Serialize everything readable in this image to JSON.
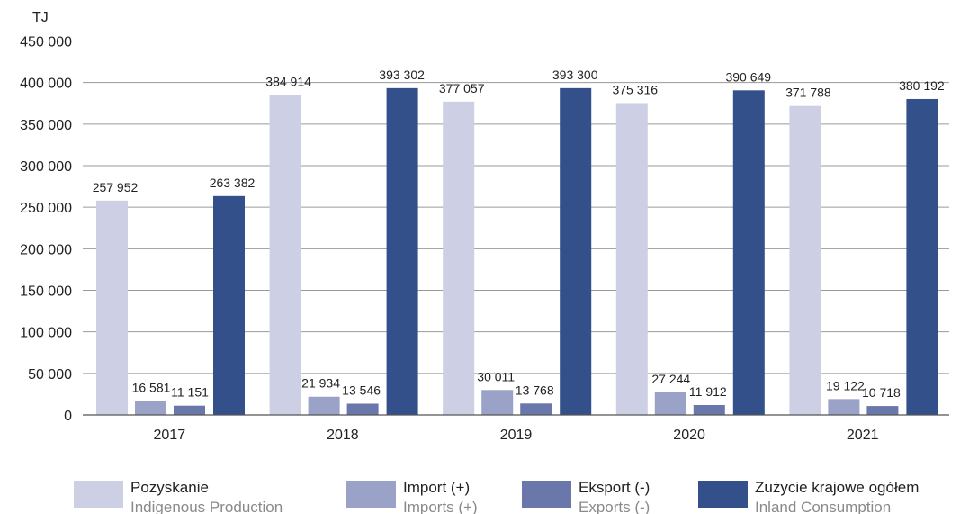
{
  "chart_data": {
    "type": "bar",
    "unit_label": "TJ",
    "categories": [
      "2017",
      "2018",
      "2019",
      "2020",
      "2021"
    ],
    "ylim": [
      0,
      450000
    ],
    "yticks": [
      0,
      50000,
      100000,
      150000,
      200000,
      250000,
      300000,
      350000,
      400000,
      450000
    ],
    "ytick_labels": [
      "0",
      "50 000",
      "100 000",
      "150 000",
      "200 000",
      "250 000",
      "300 000",
      "350 000",
      "400 000",
      "450 000"
    ],
    "grid": true,
    "legend_position": "bottom",
    "series": [
      {
        "name": "Pozyskanie",
        "name_en": "Indigenous Production",
        "color": "#cdd0e4",
        "values": [
          257952,
          384914,
          377057,
          375316,
          371788
        ],
        "labels": [
          "257 952",
          "384 914",
          "377 057",
          "375 316",
          "371 788"
        ]
      },
      {
        "name": "Import (+)",
        "name_en": "Imports (+)",
        "color": "#9aa2c7",
        "values": [
          16581,
          21934,
          30011,
          27244,
          19122
        ],
        "labels": [
          "16 581",
          "21 934",
          "30 011",
          "27 244",
          "19 122"
        ]
      },
      {
        "name": "Eksport (-)",
        "name_en": "Exports (-)",
        "color": "#6a77aa",
        "values": [
          11151,
          13546,
          13768,
          11912,
          10718
        ],
        "labels": [
          "11 151",
          "13 546",
          "13 768",
          "11 912",
          "10 718"
        ]
      },
      {
        "name": "Zużycie krajowe ogółem",
        "name_en": "Inland Consumption",
        "color": "#33508a",
        "values": [
          263382,
          393302,
          393300,
          390649,
          380192
        ],
        "labels": [
          "263 382",
          "393 302",
          "393 300",
          "390 649",
          "380 192"
        ]
      }
    ]
  }
}
